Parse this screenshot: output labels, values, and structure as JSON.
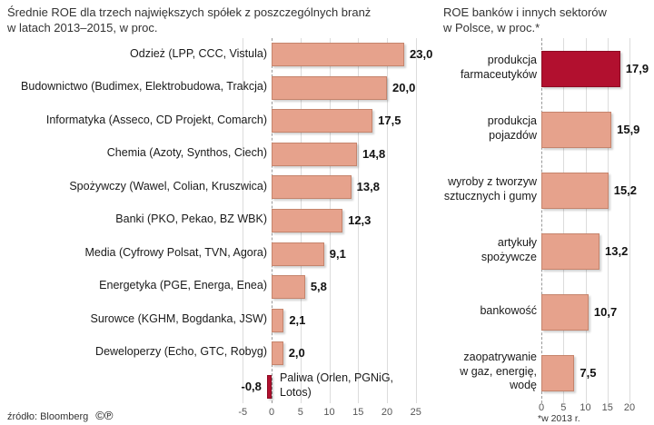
{
  "chart_data": [
    {
      "type": "bar",
      "orientation": "horizontal",
      "title": "Średnie ROE dla trzech największych spółek z poszczególnych branż\nw latach 2013–2015, w proc.",
      "xlim": [
        -5,
        25
      ],
      "xticks": [
        -5,
        0,
        5,
        10,
        15,
        20,
        25
      ],
      "grid": true,
      "bar_color": "#E6A28C",
      "bar_border": "#C5846C",
      "highlight_color": "#B2102F",
      "highlight_border": "#8C0B22",
      "items": [
        {
          "label": "Odzież (LPP, CCC, Vistula)",
          "value": 23.0,
          "value_label": "23,0"
        },
        {
          "label": "Budownictwo (Budimex, Elektrobudowa, Trakcja)",
          "value": 20.0,
          "value_label": "20,0"
        },
        {
          "label": "Informatyka (Asseco, CD Projekt, Comarch)",
          "value": 17.5,
          "value_label": "17,5"
        },
        {
          "label": "Chemia (Azoty, Synthos, Ciech)",
          "value": 14.8,
          "value_label": "14,8"
        },
        {
          "label": "Spożywczy (Wawel, Colian, Kruszwica)",
          "value": 13.8,
          "value_label": "13,8"
        },
        {
          "label": "Banki (PKO, Pekao, BZ WBK)",
          "value": 12.3,
          "value_label": "12,3"
        },
        {
          "label": "Media (Cyfrowy Polsat, TVN, Agora)",
          "value": 9.1,
          "value_label": "9,1"
        },
        {
          "label": "Energetyka (PGE, Energa, Enea)",
          "value": 5.8,
          "value_label": "5,8"
        },
        {
          "label": "Surowce (KGHM, Bogdanka, JSW)",
          "value": 2.1,
          "value_label": "2,1"
        },
        {
          "label": "Deweloperzy (Echo, GTC, Robyg)",
          "value": 2.0,
          "value_label": "2,0"
        },
        {
          "label": "Paliwa (Orlen, PGNiG,\nLotos)",
          "value": -0.8,
          "value_label": "-0,8",
          "highlight": true,
          "label_side": "right"
        }
      ]
    },
    {
      "type": "bar",
      "orientation": "horizontal",
      "title": "ROE banków i innych sektorów\nw Polsce, w proc.*",
      "footnote": "*w 2013 r.",
      "xlim": [
        0,
        20
      ],
      "xticks": [
        0,
        5,
        10,
        15,
        20
      ],
      "grid": true,
      "bar_color": "#E6A28C",
      "bar_border": "#C5846C",
      "highlight_color": "#B2102F",
      "highlight_border": "#8C0B22",
      "items": [
        {
          "label": "produkcja\nfarmaceutyków",
          "value": 17.9,
          "value_label": "17,9",
          "highlight": true
        },
        {
          "label": "produkcja\npojazdów",
          "value": 15.9,
          "value_label": "15,9"
        },
        {
          "label": "wyroby z tworzyw\nsztucznych i gumy",
          "value": 15.2,
          "value_label": "15,2"
        },
        {
          "label": "artykuły\nspożywcze",
          "value": 13.2,
          "value_label": "13,2"
        },
        {
          "label": "bankowość",
          "value": 10.7,
          "value_label": "10,7"
        },
        {
          "label": "zaopatrywanie\nw gaz, energię,\nwodę",
          "value": 7.5,
          "value_label": "7,5"
        }
      ]
    }
  ],
  "footer": {
    "source": "źródło: Bloomberg",
    "copyright_icon": "©",
    "phonogram_icon": "℗"
  }
}
